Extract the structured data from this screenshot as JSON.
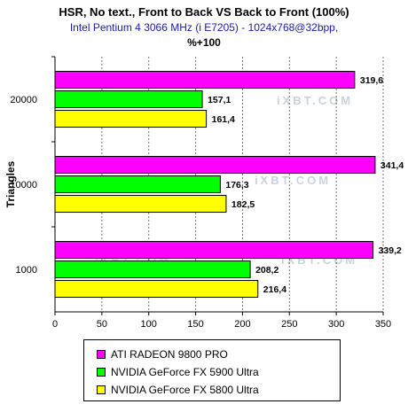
{
  "header": {
    "title": "HSR, No text., Front to Back VS Back to Front (100%)",
    "subtitle": "Intel Pentium 4 3066 MHz (i E7205) - 1024x768@32bpp,",
    "unit": "%+100"
  },
  "legend": {
    "items": [
      {
        "label": "ATI RADEON 9800 PRO",
        "color": "#ff00ff"
      },
      {
        "label": "NVIDIA GeForce FX 5900 Ultra",
        "color": "#00ff00"
      },
      {
        "label": "NVIDIA GeForce FX 5800 Ultra",
        "color": "#ffff00"
      }
    ]
  },
  "watermark": {
    "text": "iXBT.COM"
  },
  "chart_data": {
    "type": "bar",
    "orientation": "horizontal",
    "title": "HSR, No text., Front to Back VS Back to Front (100%)",
    "ylabel": "Triangles",
    "xlabel": "",
    "categories": [
      "20000",
      "10000",
      "1000"
    ],
    "xlim": [
      0,
      350
    ],
    "ticks": [
      "0",
      "50",
      "100",
      "150",
      "200",
      "250",
      "300",
      "350"
    ],
    "grid": true,
    "legend_position": "bottom",
    "series": [
      {
        "name": "ATI RADEON 9800 PRO",
        "color": "#ff00ff",
        "values": [
          319.6,
          341.4,
          339.2
        ],
        "labels": [
          "319,6",
          "341,4",
          "339,2"
        ]
      },
      {
        "name": "NVIDIA GeForce FX 5900 Ultra",
        "color": "#00ff00",
        "values": [
          157.1,
          176.3,
          208.2
        ],
        "labels": [
          "157,1",
          "176,3",
          "208,2"
        ]
      },
      {
        "name": "NVIDIA GeForce FX 5800 Ultra",
        "color": "#ffff00",
        "values": [
          161.4,
          182.5,
          216.4
        ],
        "labels": [
          "161,4",
          "182,5",
          "216,4"
        ]
      }
    ]
  }
}
